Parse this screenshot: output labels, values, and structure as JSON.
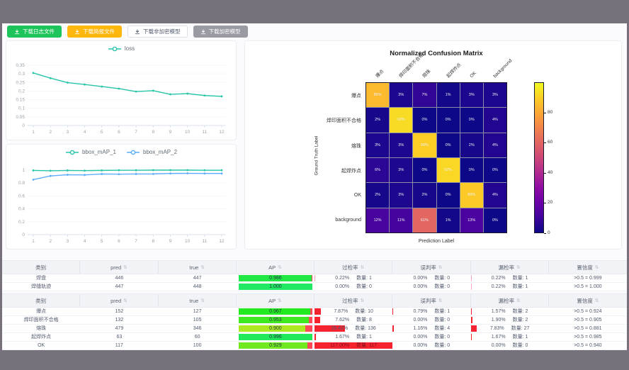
{
  "frame": {
    "color": "#77717c",
    "content_bg": "#fbfbfd"
  },
  "toolbar": {
    "buttons": [
      {
        "name": "download-log-file-button",
        "label": "下载日志文件",
        "icon": "download-icon",
        "style": "green",
        "bg": "#1dc35b",
        "fg": "#ffffff"
      },
      {
        "name": "download-brief-file-button",
        "label": "下载简报文件",
        "icon": "download-icon",
        "style": "orange",
        "bg": "#ffb60d",
        "fg": "#ffffff"
      },
      {
        "name": "download-unencrypted-model-button",
        "label": "下载非加密模型",
        "icon": "download-icon",
        "style": "plain",
        "bg": "#ffffff",
        "fg": "#515a6e"
      },
      {
        "name": "download-encrypted-model-button",
        "label": "下载加密模型",
        "icon": "download-icon",
        "style": "gray",
        "bg": "#999aa2",
        "fg": "#ffffff"
      }
    ]
  },
  "chart_data": [
    {
      "type": "line",
      "title": "",
      "xlabel": "",
      "ylabel": "",
      "x": [
        1,
        2,
        3,
        4,
        5,
        6,
        7,
        8,
        9,
        10,
        11,
        12
      ],
      "ylim": [
        0,
        0.35
      ],
      "yticks": [
        0,
        0.05,
        0.1,
        0.15,
        0.2,
        0.25,
        0.3,
        0.35
      ],
      "legend_position": "top",
      "series": [
        {
          "name": "loss",
          "color": "#27c5a7",
          "values": [
            0.305,
            0.275,
            0.249,
            0.238,
            0.226,
            0.214,
            0.197,
            0.202,
            0.181,
            0.185,
            0.174,
            0.169
          ]
        }
      ]
    },
    {
      "type": "line",
      "title": "",
      "xlabel": "",
      "ylabel": "",
      "x": [
        1,
        2,
        3,
        4,
        5,
        6,
        7,
        8,
        9,
        10,
        11,
        12
      ],
      "ylim": [
        0,
        1
      ],
      "yticks": [
        0,
        0.2,
        0.4,
        0.6,
        0.8,
        1
      ],
      "legend_position": "top",
      "series": [
        {
          "name": "bbox_mAP_1",
          "color": "#27c5a7",
          "values": [
            0.995,
            0.99,
            0.995,
            0.992,
            0.996,
            0.998,
            0.998,
            1.0,
            1.0,
            1.0,
            0.998,
            0.998
          ]
        },
        {
          "name": "bbox_mAP_2",
          "color": "#5cadff",
          "values": [
            0.852,
            0.91,
            0.928,
            0.925,
            0.94,
            0.937,
            0.94,
            0.941,
            0.948,
            0.95,
            0.948,
            0.948
          ]
        }
      ]
    },
    {
      "type": "heatmap",
      "title": "Normalized Confusion Matrix",
      "xlabel": "Prediction Label",
      "ylabel": "Ground Truth Label",
      "labels": [
        "爆点",
        "焊印面积不合格",
        "熔珠",
        "起焊炸点",
        "OK",
        "background"
      ],
      "matrix": [
        [
          85,
          3,
          7,
          1,
          3,
          3
        ],
        [
          2,
          93,
          0,
          0,
          0,
          4
        ],
        [
          3,
          3,
          90,
          0,
          2,
          4
        ],
        [
          6,
          3,
          0,
          92,
          0,
          0
        ],
        [
          2,
          3,
          2,
          0,
          89,
          4
        ],
        [
          12,
          11,
          61,
          1,
          13,
          0
        ]
      ],
      "colorbar_ticks": [
        0,
        20,
        40,
        60,
        80
      ],
      "vmax": 100,
      "colormap": "plasma"
    }
  ],
  "tables": {
    "count_label": "数量:",
    "headers": [
      {
        "key": "category",
        "label": "类别",
        "sortable": false
      },
      {
        "key": "pred",
        "label": "pred",
        "sortable": true
      },
      {
        "key": "true",
        "label": "true",
        "sortable": true
      },
      {
        "key": "ap",
        "label": "AP",
        "sortable": true
      },
      {
        "key": "overdetect-rate",
        "label": "过检率",
        "sortable": true
      },
      {
        "key": "misjudge-rate",
        "label": "误判率",
        "sortable": true
      },
      {
        "key": "missdetect-rate",
        "label": "漏检率",
        "sortable": true
      },
      {
        "key": "confidence",
        "label": "置信度",
        "sortable": true
      }
    ],
    "groups": [
      {
        "rows": [
          {
            "name": "焊盘",
            "pred": "446",
            "true": "447",
            "ap": 0.986,
            "over": {
              "pct": "0.22%",
              "count": "1",
              "frac": 0.0022
            },
            "mis": {
              "pct": "0.00%",
              "count": "0",
              "frac": 0
            },
            "miss": {
              "pct": "0.22%",
              "count": "1",
              "frac": 0.0022
            },
            "conf": ">0.5 = 0.999"
          },
          {
            "name": "焊缝轨迹",
            "pred": "447",
            "true": "448",
            "ap": 1.0,
            "over": {
              "pct": "0.00%",
              "count": "0",
              "frac": 0
            },
            "mis": {
              "pct": "0.00%",
              "count": "0",
              "frac": 0
            },
            "miss": {
              "pct": "0.22%",
              "count": "1",
              "frac": 0.0022
            },
            "conf": ">0.5 = 1.000"
          }
        ]
      },
      {
        "rows": [
          {
            "name": "爆点",
            "pred": "152",
            "true": "127",
            "ap": 0.967,
            "over": {
              "pct": "7.87%",
              "count": "10",
              "frac": 0.0787
            },
            "mis": {
              "pct": "0.79%",
              "count": "1",
              "frac": 0.0079
            },
            "miss": {
              "pct": "1.57%",
              "count": "2",
              "frac": 0.0157
            },
            "conf": ">0.5 = 0.924"
          },
          {
            "name": "焊印面积不合格",
            "pred": "132",
            "true": "105",
            "ap": 0.953,
            "over": {
              "pct": "7.62%",
              "count": "8",
              "frac": 0.0762
            },
            "mis": {
              "pct": "0.00%",
              "count": "0",
              "frac": 0
            },
            "miss": {
              "pct": "1.90%",
              "count": "2",
              "frac": 0.019
            },
            "conf": ">0.5 = 0.905"
          },
          {
            "name": "熔珠",
            "pred": "479",
            "true": "346",
            "ap": 0.9,
            "over": {
              "pct": "39.42%",
              "count": "136",
              "frac": 0.3942
            },
            "mis": {
              "pct": "1.16%",
              "count": "4",
              "frac": 0.0116
            },
            "miss": {
              "pct": "7.83%",
              "count": "27",
              "frac": 0.0783
            },
            "conf": ">0.5 = 0.881"
          },
          {
            "name": "起焊炸点",
            "pred": "63",
            "true": "60",
            "ap": 0.996,
            "over": {
              "pct": "1.67%",
              "count": "1",
              "frac": 0.0167
            },
            "mis": {
              "pct": "0.00%",
              "count": "0",
              "frac": 0
            },
            "miss": {
              "pct": "1.67%",
              "count": "1",
              "frac": 0.0167
            },
            "conf": ">0.5 = 0.985"
          },
          {
            "name": "OK",
            "pred": "117",
            "true": "100",
            "ap": 0.929,
            "over": {
              "pct": "117.00%",
              "count": "117",
              "frac": 1.17
            },
            "mis": {
              "pct": "0.00%",
              "count": "0",
              "frac": 0
            },
            "miss": {
              "pct": "0.00%",
              "count": "0",
              "frac": 0
            },
            "conf": ">0.5 = 0.940"
          }
        ]
      }
    ]
  }
}
